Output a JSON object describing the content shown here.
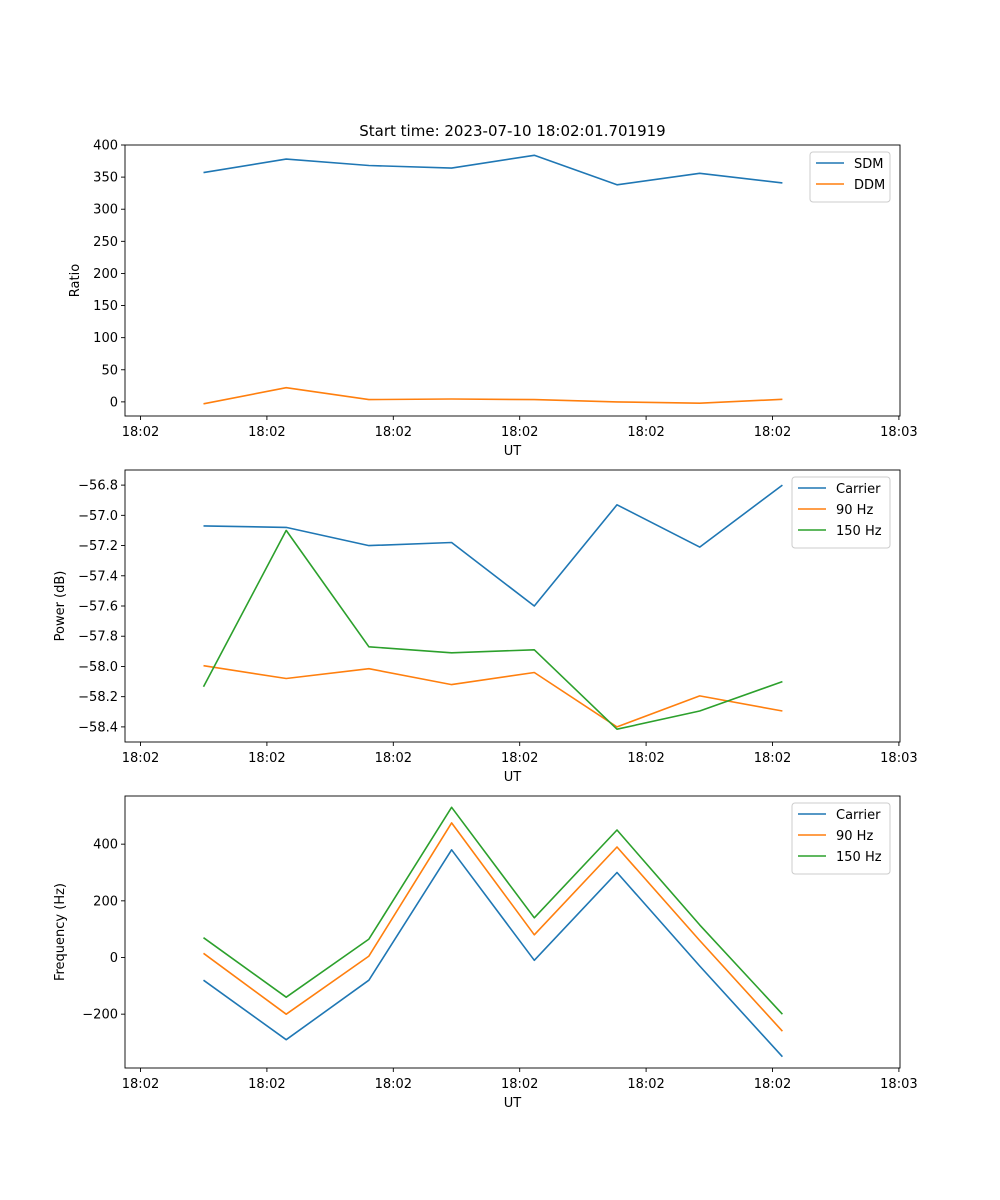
{
  "title": "Start time: 2023-07-10 18:02:01.701919",
  "colors": {
    "blue": "#1f77b4",
    "orange": "#ff7f0e",
    "green": "#2ca02c"
  },
  "chart_data": [
    {
      "type": "line",
      "xlabel": "UT",
      "ylabel": "Ratio",
      "x_tick_labels": [
        "18:02",
        "18:02",
        "18:02",
        "18:02",
        "18:02",
        "18:02",
        "18:03"
      ],
      "ylim": [
        -22,
        400
      ],
      "yticks": [
        0,
        50,
        100,
        150,
        200,
        250,
        300,
        350,
        400
      ],
      "y_tick_labels": [
        "0",
        "50",
        "100",
        "150",
        "200",
        "250",
        "300",
        "350",
        "400"
      ],
      "legend_position": "top-right",
      "series": [
        {
          "name": "SDM",
          "color": "#1f77b4",
          "values": [
            357,
            378,
            368,
            364,
            384,
            338,
            356,
            341
          ]
        },
        {
          "name": "DDM",
          "color": "#ff7f0e",
          "values": [
            -3,
            22,
            3.5,
            4.5,
            3.5,
            0,
            -2,
            4
          ]
        }
      ]
    },
    {
      "type": "line",
      "xlabel": "UT",
      "ylabel": "Power (dB)",
      "x_tick_labels": [
        "18:02",
        "18:02",
        "18:02",
        "18:02",
        "18:02",
        "18:02",
        "18:03"
      ],
      "ylim": [
        -58.5,
        -56.7
      ],
      "yticks": [
        -58.4,
        -58.2,
        -58.0,
        -57.8,
        -57.6,
        -57.4,
        -57.2,
        -57.0,
        -56.8
      ],
      "y_tick_labels": [
        "−58.4",
        "−58.2",
        "−58.0",
        "−57.8",
        "−57.6",
        "−57.4",
        "−57.2",
        "−57.0",
        "−56.8"
      ],
      "legend_position": "top-right",
      "series": [
        {
          "name": "Carrier",
          "color": "#1f77b4",
          "values": [
            -57.07,
            -57.08,
            -57.2,
            -57.18,
            -57.6,
            -56.93,
            -57.21,
            -56.8
          ]
        },
        {
          "name": "90 Hz",
          "color": "#ff7f0e",
          "values": [
            -57.995,
            -58.08,
            -58.015,
            -58.12,
            -58.04,
            -58.4,
            -58.195,
            -58.295
          ]
        },
        {
          "name": "150 Hz",
          "color": "#2ca02c",
          "values": [
            -58.135,
            -57.1,
            -57.87,
            -57.91,
            -57.89,
            -58.415,
            -58.295,
            -58.1
          ]
        }
      ]
    },
    {
      "type": "line",
      "xlabel": "UT",
      "ylabel": "Frequency (Hz)",
      "x_tick_labels": [
        "18:02",
        "18:02",
        "18:02",
        "18:02",
        "18:02",
        "18:02",
        "18:03"
      ],
      "ylim": [
        -390,
        570
      ],
      "yticks": [
        -200,
        0,
        200,
        400
      ],
      "y_tick_labels": [
        "−200",
        "0",
        "200",
        "400"
      ],
      "legend_position": "top-right",
      "series": [
        {
          "name": "Carrier",
          "color": "#1f77b4",
          "values": [
            -80,
            -290,
            -80,
            380,
            -10,
            300,
            -30,
            -350
          ]
        },
        {
          "name": "90 Hz",
          "color": "#ff7f0e",
          "values": [
            15,
            -200,
            5,
            475,
            80,
            390,
            60,
            -260
          ]
        },
        {
          "name": "150 Hz",
          "color": "#2ca02c",
          "values": [
            70,
            -140,
            65,
            530,
            140,
            450,
            115,
            -200
          ]
        }
      ]
    }
  ]
}
